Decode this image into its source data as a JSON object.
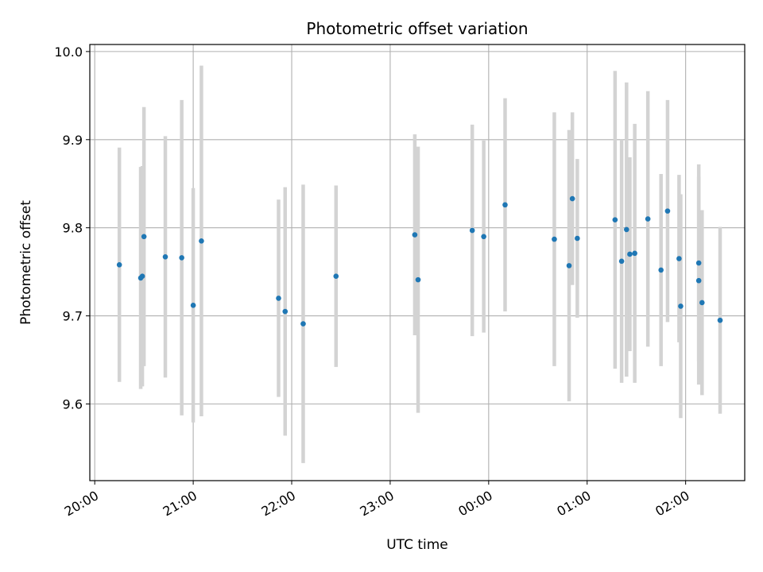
{
  "chart_data": {
    "type": "scatter",
    "title": "Photometric offset variation",
    "xlabel": "UTC time",
    "ylabel": "Photometric offset",
    "x_ticks": [
      "20:00",
      "21:00",
      "22:00",
      "23:00",
      "00:00",
      "01:00",
      "02:00"
    ],
    "y_ticks": [
      "9.6",
      "9.7",
      "9.8",
      "9.9",
      "10.0"
    ],
    "ylim": [
      9.513,
      10.008
    ],
    "xlim": [
      "19:57",
      "02:36"
    ],
    "grid": true,
    "colors": {
      "point": "#1f77b4",
      "errorbar": "#d3d3d3",
      "grid": "#b0b0b0"
    },
    "series": [
      {
        "points": [
          {
            "x": "20:15",
            "y": 9.758,
            "err": 0.133
          },
          {
            "x": "20:28",
            "y": 9.743,
            "err": 0.126
          },
          {
            "x": "20:29",
            "y": 9.745,
            "err": 0.125
          },
          {
            "x": "20:30",
            "y": 9.79,
            "err": 0.147
          },
          {
            "x": "20:43",
            "y": 9.767,
            "err": 0.137
          },
          {
            "x": "20:53",
            "y": 9.766,
            "err": 0.179
          },
          {
            "x": "21:00",
            "y": 9.712,
            "err": 0.133
          },
          {
            "x": "21:05",
            "y": 9.785,
            "err": 0.199
          },
          {
            "x": "21:52",
            "y": 9.72,
            "err": 0.112
          },
          {
            "x": "21:56",
            "y": 9.705,
            "err": 0.141
          },
          {
            "x": "22:07",
            "y": 9.691,
            "err": 0.158
          },
          {
            "x": "22:27",
            "y": 9.745,
            "err": 0.103
          },
          {
            "x": "23:15",
            "y": 9.792,
            "err": 0.114
          },
          {
            "x": "23:17",
            "y": 9.741,
            "err": 0.151
          },
          {
            "x": "23:50",
            "y": 9.797,
            "err": 0.12
          },
          {
            "x": "23:57",
            "y": 9.79,
            "err": 0.109
          },
          {
            "x": "00:10",
            "y": 9.826,
            "err": 0.121
          },
          {
            "x": "00:40",
            "y": 9.787,
            "err": 0.144
          },
          {
            "x": "00:49",
            "y": 9.757,
            "err": 0.154
          },
          {
            "x": "00:51",
            "y": 9.833,
            "err": 0.098
          },
          {
            "x": "00:54",
            "y": 9.788,
            "err": 0.09
          },
          {
            "x": "01:17",
            "y": 9.809,
            "err": 0.169
          },
          {
            "x": "01:21",
            "y": 9.762,
            "err": 0.138
          },
          {
            "x": "01:24",
            "y": 9.798,
            "err": 0.167
          },
          {
            "x": "01:26",
            "y": 9.77,
            "err": 0.11
          },
          {
            "x": "01:29",
            "y": 9.771,
            "err": 0.147
          },
          {
            "x": "01:37",
            "y": 9.81,
            "err": 0.145
          },
          {
            "x": "01:45",
            "y": 9.752,
            "err": 0.109
          },
          {
            "x": "01:49",
            "y": 9.819,
            "err": 0.126
          },
          {
            "x": "01:56",
            "y": 9.765,
            "err": 0.095
          },
          {
            "x": "01:57",
            "y": 9.711,
            "err": 0.127
          },
          {
            "x": "02:08",
            "y": 9.76,
            "err": 0.112
          },
          {
            "x": "02:08",
            "y": 9.74,
            "err": 0.118
          },
          {
            "x": "02:10",
            "y": 9.715,
            "err": 0.105
          },
          {
            "x": "02:21",
            "y": 9.695,
            "err": 0.106
          }
        ]
      }
    ]
  }
}
